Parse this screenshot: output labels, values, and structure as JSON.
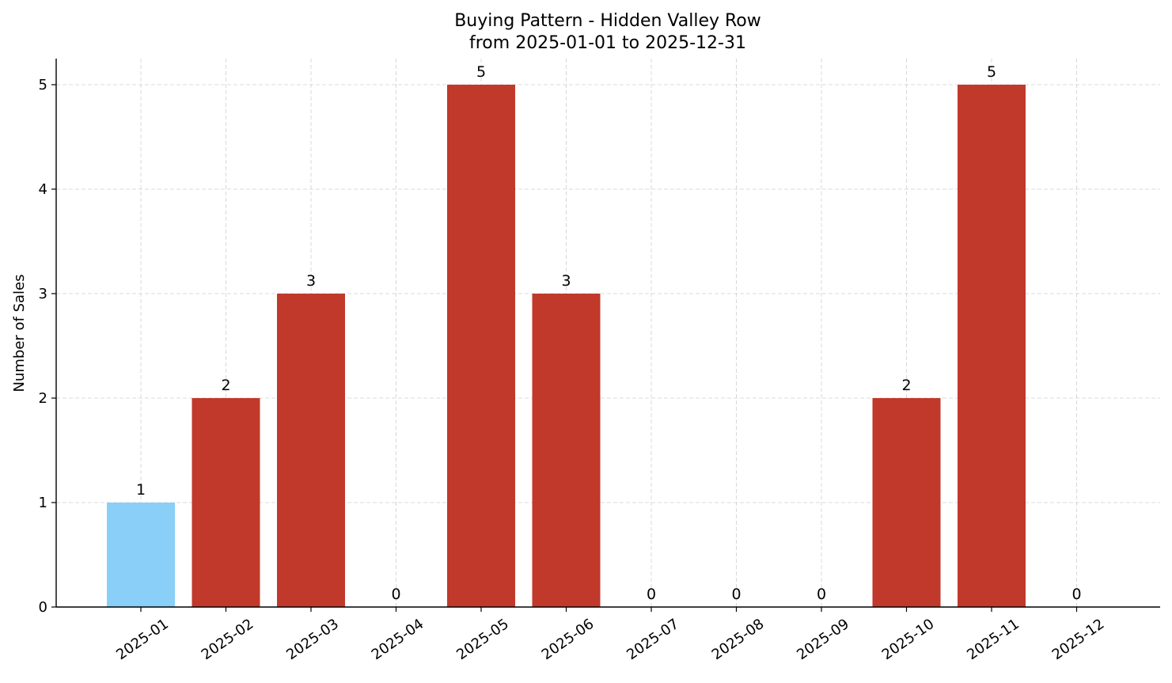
{
  "chart_data": {
    "type": "bar",
    "title": "Buying Pattern - Hidden Valley Row",
    "subtitle": "from 2025-01-01 to 2025-12-31",
    "xlabel": "",
    "ylabel": "Number of Sales",
    "categories": [
      "2025-01",
      "2025-02",
      "2025-03",
      "2025-04",
      "2025-05",
      "2025-06",
      "2025-07",
      "2025-08",
      "2025-09",
      "2025-10",
      "2025-11",
      "2025-12"
    ],
    "values": [
      1,
      2,
      3,
      0,
      5,
      3,
      0,
      0,
      0,
      2,
      5,
      0
    ],
    "bar_colors": [
      "#89CFF8",
      "#C0392B",
      "#C0392B",
      "#C0392B",
      "#C0392B",
      "#C0392B",
      "#C0392B",
      "#C0392B",
      "#C0392B",
      "#C0392B",
      "#C0392B",
      "#C0392B"
    ],
    "ylim": [
      0,
      5.25
    ],
    "yticks": [
      0,
      1,
      2,
      3,
      4,
      5
    ],
    "grid": true,
    "legend": "none"
  }
}
